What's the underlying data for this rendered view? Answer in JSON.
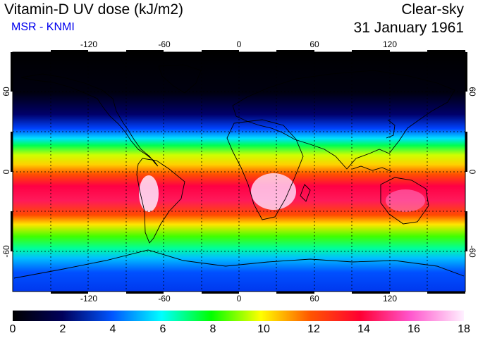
{
  "header": {
    "title": "Vitamin-D UV dose (kJ/m2)",
    "subtitle": "MSR - KNMI",
    "condition": "Clear-sky",
    "date": "31 January 1961"
  },
  "colors": {
    "subtitle": "#0000ee",
    "frame": "#000000"
  },
  "axes": {
    "lon_ticks": [
      "-120",
      "-60",
      "0",
      "60",
      "120"
    ],
    "lat_ticks": [
      "60",
      "0",
      "-60"
    ],
    "lon_range": [
      -180,
      180
    ],
    "lat_range": [
      -90,
      90
    ]
  },
  "colorbar": {
    "labels": [
      "0",
      "2",
      "4",
      "6",
      "8",
      "10",
      "12",
      "14",
      "16",
      "18"
    ],
    "range": [
      0,
      18
    ],
    "unit": "kJ/m2"
  }
}
